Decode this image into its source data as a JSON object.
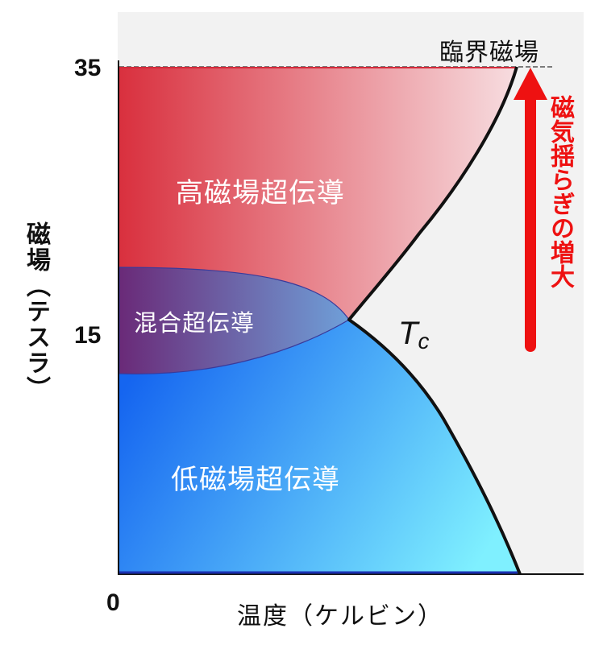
{
  "diagram": {
    "axes": {
      "x_label": "温度（ケルビン）",
      "y_label": "磁場（テスラ）",
      "x_origin_label": "0",
      "y_ticks": [
        "35",
        "15"
      ]
    },
    "regions": {
      "high": "高磁場超伝導",
      "mixed": "混合超伝導",
      "low": "低磁場超伝導"
    },
    "annotations": {
      "critical_field": "臨界磁場",
      "tc_main": "T",
      "tc_sub": "c",
      "arrow_label": "磁気揺らぎの増大"
    },
    "colors": {
      "high_region_start": "#d9303e",
      "high_region_end": "#f7dde0",
      "mixed_region_start": "#6a2a78",
      "mixed_region_end": "#6f9fd8",
      "low_region_start": "#1565f0",
      "low_region_end": "#7ff0ff",
      "background": "#f2f2f2",
      "arrow": "#ee1111",
      "boundary": "#111111"
    }
  }
}
